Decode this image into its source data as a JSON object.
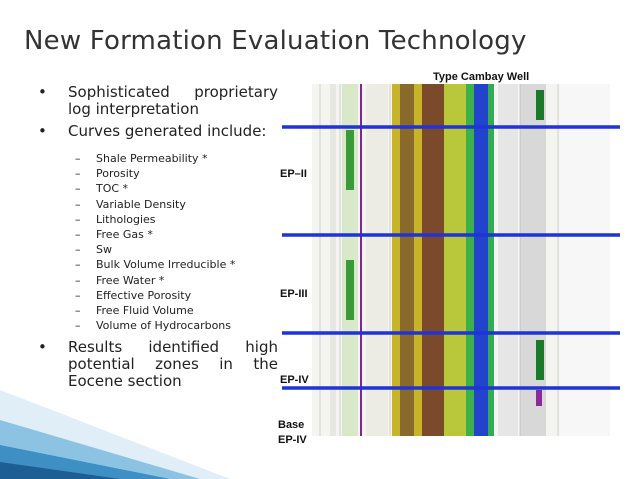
{
  "title": "New Formation Evaluation Technology",
  "bullets_top": [
    "Sophisticated proprietary log interpretation",
    "Curves generated include:"
  ],
  "curves": [
    "Shale Permeability *",
    "Porosity",
    "TOC *",
    "Variable Density",
    "Lithologies",
    "Free Gas *",
    "Sw",
    "Bulk Volume Irreducible *",
    "Free Water *",
    "Effective Porosity",
    "Free Fluid Volume",
    "Volume of Hydrocarbons"
  ],
  "bullets_bottom": [
    "Results identified high potential zones in the Eocene section"
  ],
  "figure": {
    "caption": "Type Cambay Well",
    "zone_labels": [
      "EP–II",
      "EP-III",
      "EP-IV"
    ],
    "base_label": [
      "Base",
      "EP-IV"
    ]
  }
}
